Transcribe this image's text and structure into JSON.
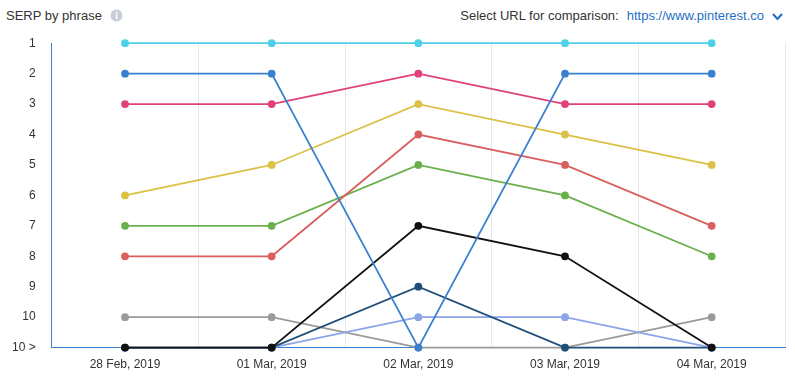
{
  "chart_data": {
    "type": "line",
    "title": "SERP by phrase",
    "annotations": [
      "Select URL for comparison:",
      "https://www.pinterest.co"
    ],
    "categories": [
      "28 Feb, 2019",
      "01 Mar, 2019",
      "02 Mar, 2019",
      "03 Mar, 2019",
      "04 Mar, 2019"
    ],
    "series": [
      {
        "color": "#4dd0e8",
        "values": [
          1,
          1,
          1,
          1,
          1
        ]
      },
      {
        "color": "#3a7fd0",
        "values": [
          2,
          2,
          11,
          2,
          2
        ]
      },
      {
        "color": "#e0407c",
        "values": [
          3,
          3,
          2,
          3,
          3
        ]
      },
      {
        "color": "#dcc146",
        "values": [
          6,
          5,
          3,
          4,
          5
        ]
      },
      {
        "color": "#d9605f",
        "values": [
          8,
          8,
          4,
          5,
          7
        ]
      },
      {
        "color": "#6ab04c",
        "values": [
          7,
          7,
          5,
          6,
          8
        ]
      },
      {
        "color": "#111111",
        "values": [
          11,
          11,
          7,
          8,
          11
        ]
      },
      {
        "color": "#1f4e79",
        "values": [
          11,
          11,
          9,
          11,
          11
        ]
      },
      {
        "color": "#8ca4e8",
        "values": [
          11,
          11,
          10,
          10,
          11
        ]
      },
      {
        "color": "#9a9a9a",
        "values": [
          10,
          10,
          11,
          11,
          10
        ]
      }
    ],
    "ylim": [
      11,
      1
    ],
    "yticks": [
      1,
      2,
      3,
      4,
      5,
      6,
      7,
      8,
      9,
      10,
      {
        "value": 11,
        "label": "10 >"
      }
    ],
    "grid": true,
    "marker": "circle"
  }
}
